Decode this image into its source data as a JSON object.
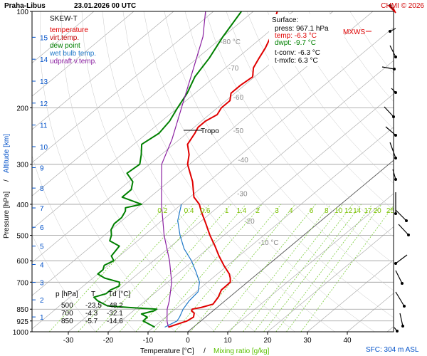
{
  "header": {
    "station": "Praha-Libus",
    "datetime": "23.01.2026 00 UTC",
    "copyright": "CHMI © 2026"
  },
  "colors": {
    "temperature": "#e00000",
    "virt": "#c00000",
    "dew": "#008000",
    "wetbulb": "#1e78c8",
    "updraft": "#8a1fa0",
    "mixing": "#7ccd3c",
    "isotherm": "#a0a0a0",
    "grid": "#9a9a9a"
  },
  "legend": {
    "title": "SKEW-T",
    "items": [
      {
        "label": "temperature",
        "color": "#e00000"
      },
      {
        "label": "virt.temp.",
        "color": "#c00000"
      },
      {
        "label": "dew point",
        "color": "#008000"
      },
      {
        "label": "wet bulb temp.",
        "color": "#1e78c8"
      },
      {
        "label": "udpraft v.temp.",
        "color": "#8a1fa0"
      }
    ]
  },
  "surface": {
    "title": "Surface:",
    "press": "press: 967.1 hPa",
    "temp": "temp: -6.3 °C",
    "dwpt": "dwpt: -9.7 °C",
    "tconv": "t-conv: -6.3 °C",
    "tmxfc": "t-mxfc: 6.3 °C"
  },
  "table": {
    "headers": [
      "p [hPa]",
      "T",
      "Td [°C]"
    ],
    "rows": [
      [
        "500",
        "-23.5",
        "-48.2"
      ],
      [
        "700",
        "-4.3",
        "-32.1"
      ],
      [
        "850",
        "-5.7",
        "-14.6"
      ]
    ]
  },
  "annotations": {
    "tropo": "Tropo",
    "mxws": "MXWS",
    "sfc": "SFC: 304 m ASL"
  },
  "chart_data": {
    "type": "line",
    "title": "Praha-Libus 23.01.2026 00 UTC",
    "xlabel": "Temperature [°C]",
    "xlabel2": "Mixing ratio [g/kg]",
    "xlabel_sep": "/",
    "ylabel": "Pressure [hPa]",
    "ylabel_sep": "/",
    "ylabel2": "Altitude [km]",
    "x_ticks": [
      -30,
      -20,
      -10,
      0,
      10,
      20,
      30,
      40
    ],
    "p_ticks": [
      100,
      200,
      300,
      400,
      500,
      600,
      700,
      850,
      925,
      1000
    ],
    "alt_ticks": [
      1,
      2,
      3,
      4,
      5,
      6,
      7,
      8,
      9,
      10,
      11,
      12,
      13,
      14,
      15
    ],
    "isotherm_labels": [
      -80,
      -70,
      -60,
      -50,
      -40,
      -30,
      -20,
      -10
    ],
    "mixing_ratio_labels": [
      "0.2",
      "0.4",
      "0.6",
      "1",
      "1.4",
      "2",
      "3",
      "4",
      "6",
      "8",
      "10",
      "12",
      "14",
      "17",
      "20",
      "25"
    ],
    "series": [
      {
        "name": "temperature",
        "color": "#e00000",
        "points": [
          [
            967.1,
            -6.3
          ],
          [
            925,
            -3.5
          ],
          [
            900,
            -3.0
          ],
          [
            875,
            -4.0
          ],
          [
            860,
            -5.4
          ],
          [
            850,
            -5.7
          ],
          [
            840,
            -4.0
          ],
          [
            820,
            -2.0
          ],
          [
            800,
            -2.4
          ],
          [
            780,
            -2.8
          ],
          [
            760,
            -3.5
          ],
          [
            740,
            -4.2
          ],
          [
            720,
            -4.2
          ],
          [
            700,
            -4.3
          ],
          [
            680,
            -5.5
          ],
          [
            660,
            -7.0
          ],
          [
            620,
            -11.0
          ],
          [
            580,
            -15.0
          ],
          [
            540,
            -19.0
          ],
          [
            500,
            -23.5
          ],
          [
            460,
            -28.0
          ],
          [
            420,
            -33.0
          ],
          [
            400,
            -35.5
          ],
          [
            380,
            -39.0
          ],
          [
            340,
            -44.0
          ],
          [
            300,
            -50.5
          ],
          [
            280,
            -53.0
          ],
          [
            260,
            -56.5
          ],
          [
            240,
            -58.0
          ],
          [
            235,
            -58.5
          ],
          [
            230,
            -59.0
          ],
          [
            220,
            -59.0
          ],
          [
            210,
            -58.0
          ],
          [
            200,
            -59.0
          ],
          [
            190,
            -59.0
          ],
          [
            180,
            -61.0
          ],
          [
            170,
            -61.0
          ],
          [
            160,
            -60.5
          ],
          [
            150,
            -63.0
          ],
          [
            140,
            -64.5
          ],
          [
            130,
            -66.0
          ],
          [
            120,
            -68.0
          ],
          [
            110,
            -71.0
          ],
          [
            100,
            -74.0
          ]
        ]
      },
      {
        "name": "dew point",
        "color": "#008000",
        "points": [
          [
            967.1,
            -9.7
          ],
          [
            925,
            -14.5
          ],
          [
            900,
            -14.6
          ],
          [
            880,
            -17.0
          ],
          [
            860,
            -14.8
          ],
          [
            850,
            -14.6
          ],
          [
            840,
            -22.0
          ],
          [
            830,
            -28.0
          ],
          [
            800,
            -32.0
          ],
          [
            780,
            -34.0
          ],
          [
            760,
            -32.0
          ],
          [
            740,
            -32.0
          ],
          [
            720,
            -31.0
          ],
          [
            700,
            -32.1
          ],
          [
            680,
            -37.0
          ],
          [
            660,
            -40.0
          ],
          [
            640,
            -40.0
          ],
          [
            620,
            -41.0
          ],
          [
            600,
            -40.0
          ],
          [
            580,
            -42.0
          ],
          [
            560,
            -42.5
          ],
          [
            540,
            -43.0
          ],
          [
            520,
            -47.0
          ],
          [
            500,
            -48.2
          ],
          [
            480,
            -50.0
          ],
          [
            460,
            -51.0
          ],
          [
            440,
            -51.0
          ],
          [
            420,
            -52.0
          ],
          [
            410,
            -53.0
          ],
          [
            400,
            -50.0
          ],
          [
            380,
            -57.0
          ],
          [
            360,
            -57.0
          ],
          [
            340,
            -59.0
          ],
          [
            320,
            -63.0
          ],
          [
            300,
            -62.5
          ],
          [
            280,
            -65.0
          ],
          [
            260,
            -68.0
          ],
          [
            240,
            -67.0
          ],
          [
            220,
            -68.0
          ],
          [
            200,
            -70.0
          ],
          [
            180,
            -72.0
          ],
          [
            160,
            -75.0
          ],
          [
            140,
            -77.0
          ],
          [
            120,
            -80.0
          ],
          [
            100,
            -83.0
          ]
        ]
      },
      {
        "name": "wet bulb temp.",
        "color": "#1e78c8",
        "points": [
          [
            967.1,
            -7.2
          ],
          [
            925,
            -6.0
          ],
          [
            900,
            -6.5
          ],
          [
            850,
            -8.0
          ],
          [
            800,
            -9.0
          ],
          [
            750,
            -9.5
          ],
          [
            700,
            -12.0
          ],
          [
            650,
            -16.0
          ],
          [
            600,
            -20.5
          ],
          [
            550,
            -26.0
          ],
          [
            500,
            -31.0
          ],
          [
            450,
            -36.0
          ],
          [
            400,
            -40.0
          ]
        ]
      },
      {
        "name": "udpraft v.temp.",
        "color": "#8a1fa0",
        "points": [
          [
            967.1,
            -6.3
          ],
          [
            925,
            -8.5
          ],
          [
            850,
            -12.0
          ],
          [
            800,
            -14.0
          ],
          [
            700,
            -19.0
          ],
          [
            600,
            -26.0
          ],
          [
            500,
            -35.0
          ],
          [
            400,
            -45.0
          ],
          [
            300,
            -57.0
          ],
          [
            250,
            -62.0
          ],
          [
            200,
            -69.0
          ],
          [
            150,
            -78.0
          ],
          [
            120,
            -85.0
          ],
          [
            100,
            -92.0
          ]
        ]
      }
    ],
    "tropopause_hpa": 235
  }
}
